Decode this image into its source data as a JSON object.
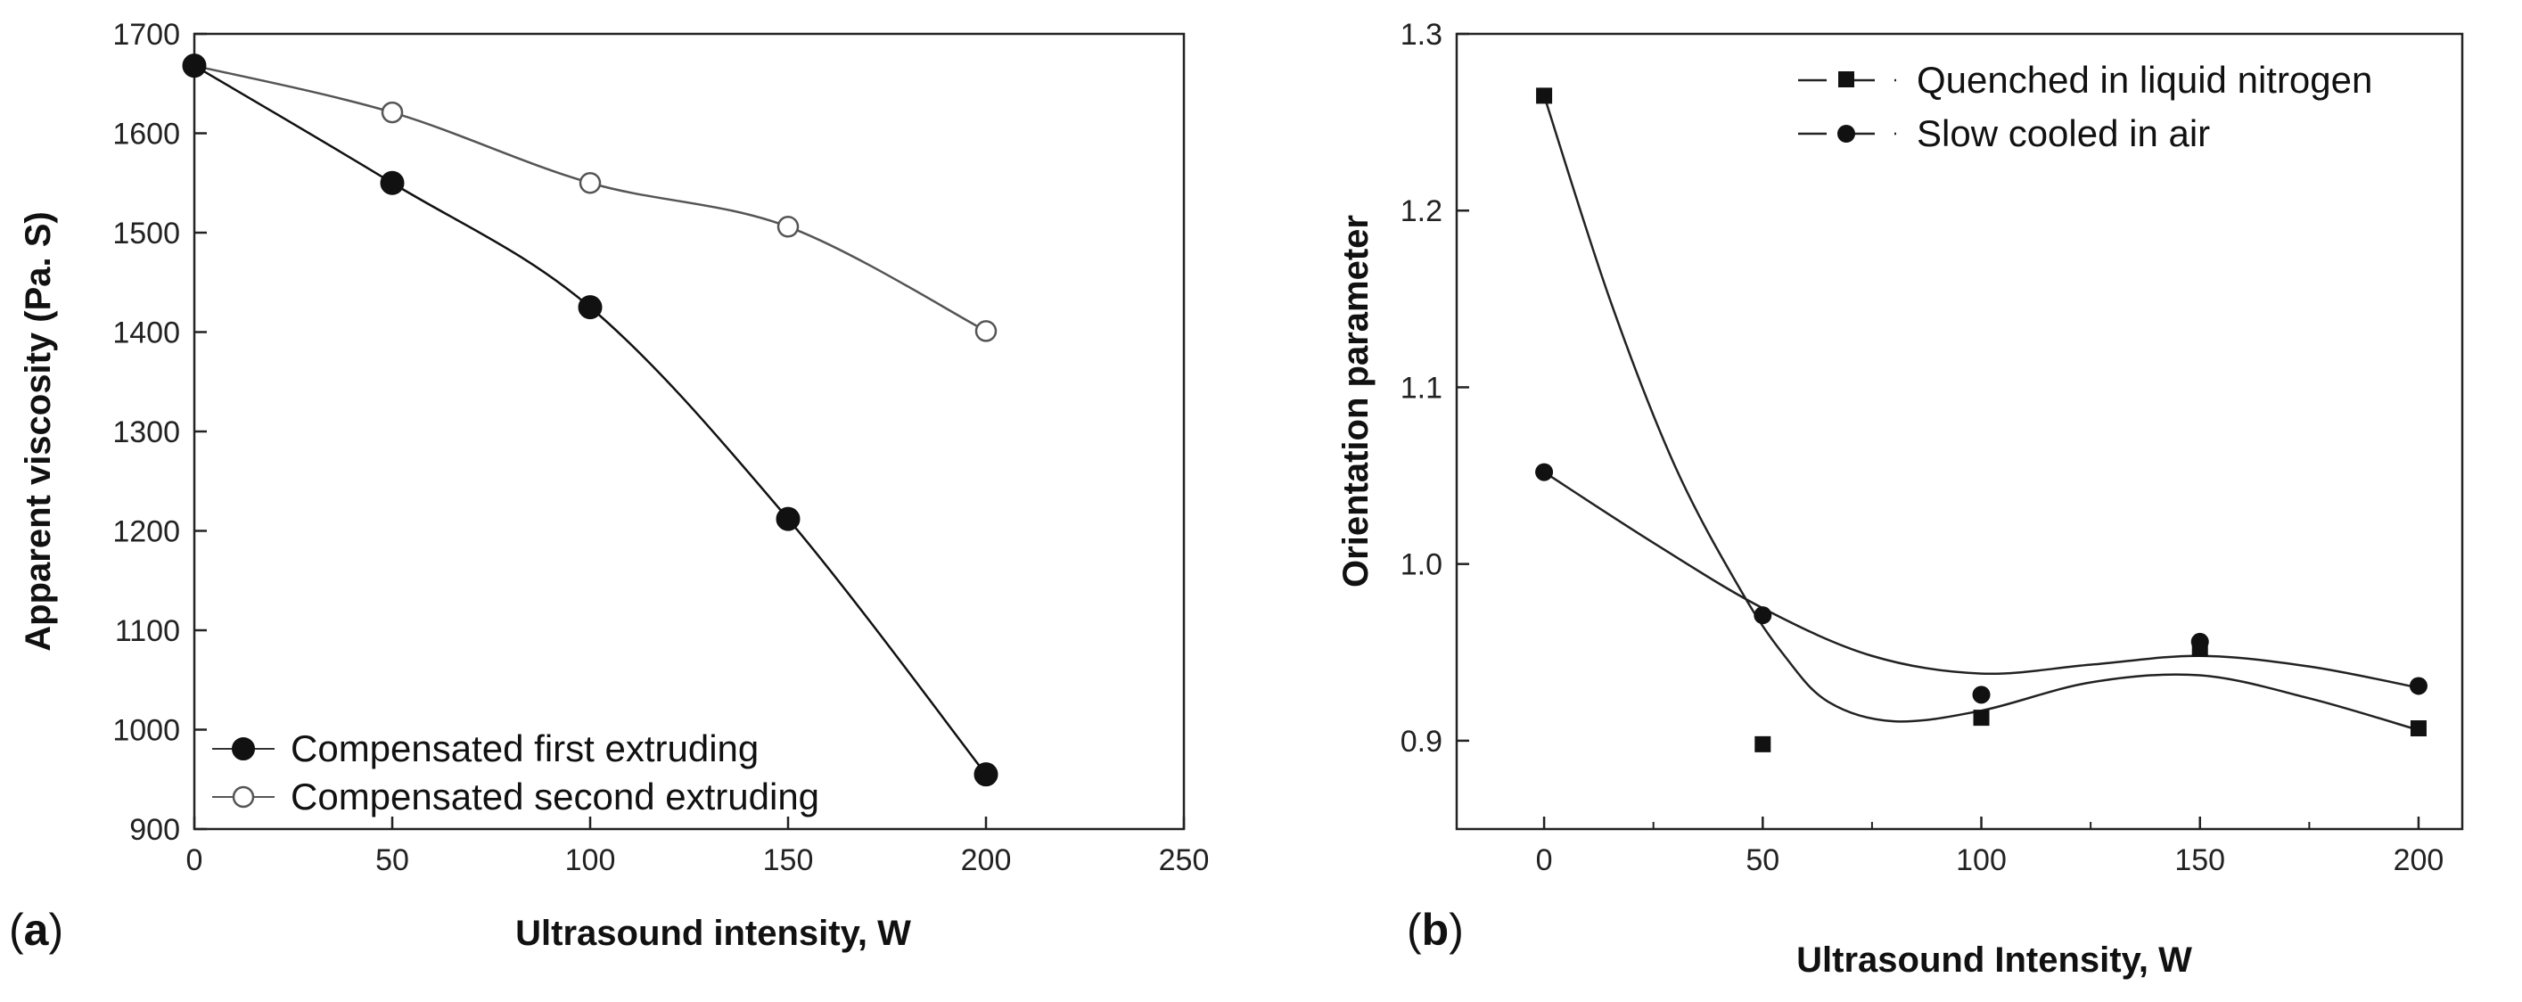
{
  "chart_data": [
    {
      "type": "line",
      "panel_label": "a",
      "title": "",
      "xlabel": "Ultrasound intensity, W",
      "ylabel": "Apparent viscosity (Pa. S)",
      "xlim": [
        0,
        250
      ],
      "ylim": [
        900,
        1700
      ],
      "xticks": [
        0,
        50,
        100,
        150,
        200,
        250
      ],
      "yticks": [
        900,
        1000,
        1100,
        1200,
        1300,
        1400,
        1500,
        1600,
        1700
      ],
      "grid": false,
      "legend_position": "bottom-left",
      "series": [
        {
          "name": "Compensated first extruding",
          "marker": "filled-circle",
          "color": "#111111",
          "x": [
            0,
            50,
            100,
            150,
            200
          ],
          "values": [
            1668,
            1550,
            1425,
            1212,
            955
          ]
        },
        {
          "name": "Compensated second extruding",
          "marker": "open-circle",
          "color": "#555555",
          "x": [
            0,
            50,
            100,
            150,
            200
          ],
          "values": [
            1668,
            1621,
            1550,
            1506,
            1401
          ]
        }
      ]
    },
    {
      "type": "scatter",
      "panel_label": "b",
      "title": "",
      "xlabel": "Ultrasound Intensity, W",
      "ylabel": "Orientation parameter",
      "xlim": [
        -20,
        210
      ],
      "ylim": [
        0.85,
        1.3
      ],
      "xticks": [
        0,
        50,
        100,
        150,
        200
      ],
      "yticks": [
        0.9,
        1.0,
        1.1,
        1.2,
        1.3
      ],
      "ytick_labels": [
        "0.9",
        "1.0",
        "1.1",
        "1.2",
        "1.3"
      ],
      "grid": false,
      "legend_position": "top-right",
      "series": [
        {
          "name": "Quenched in liquid nitrogen",
          "marker": "filled-square",
          "color": "#111111",
          "x": [
            0,
            50,
            100,
            150,
            200
          ],
          "values": [
            1.265,
            0.898,
            0.913,
            0.952,
            0.907
          ],
          "fit_curve": {
            "x": [
              0,
              15,
              30,
              45,
              55,
              65,
              80,
              100,
              125,
              150,
              175,
              200
            ],
            "values": [
              1.265,
              1.15,
              1.055,
              0.985,
              0.948,
              0.922,
              0.911,
              0.917,
              0.933,
              0.937,
              0.924,
              0.906
            ]
          }
        },
        {
          "name": "Slow cooled in air",
          "marker": "filled-circle",
          "color": "#111111",
          "x": [
            0,
            50,
            100,
            150,
            200
          ],
          "values": [
            1.052,
            0.971,
            0.926,
            0.956,
            0.931
          ],
          "fit_curve": {
            "x": [
              0,
              25,
              50,
              75,
              100,
              125,
              150,
              175,
              200
            ],
            "values": [
              1.052,
              1.012,
              0.975,
              0.948,
              0.938,
              0.943,
              0.948,
              0.942,
              0.93
            ]
          }
        }
      ]
    }
  ]
}
